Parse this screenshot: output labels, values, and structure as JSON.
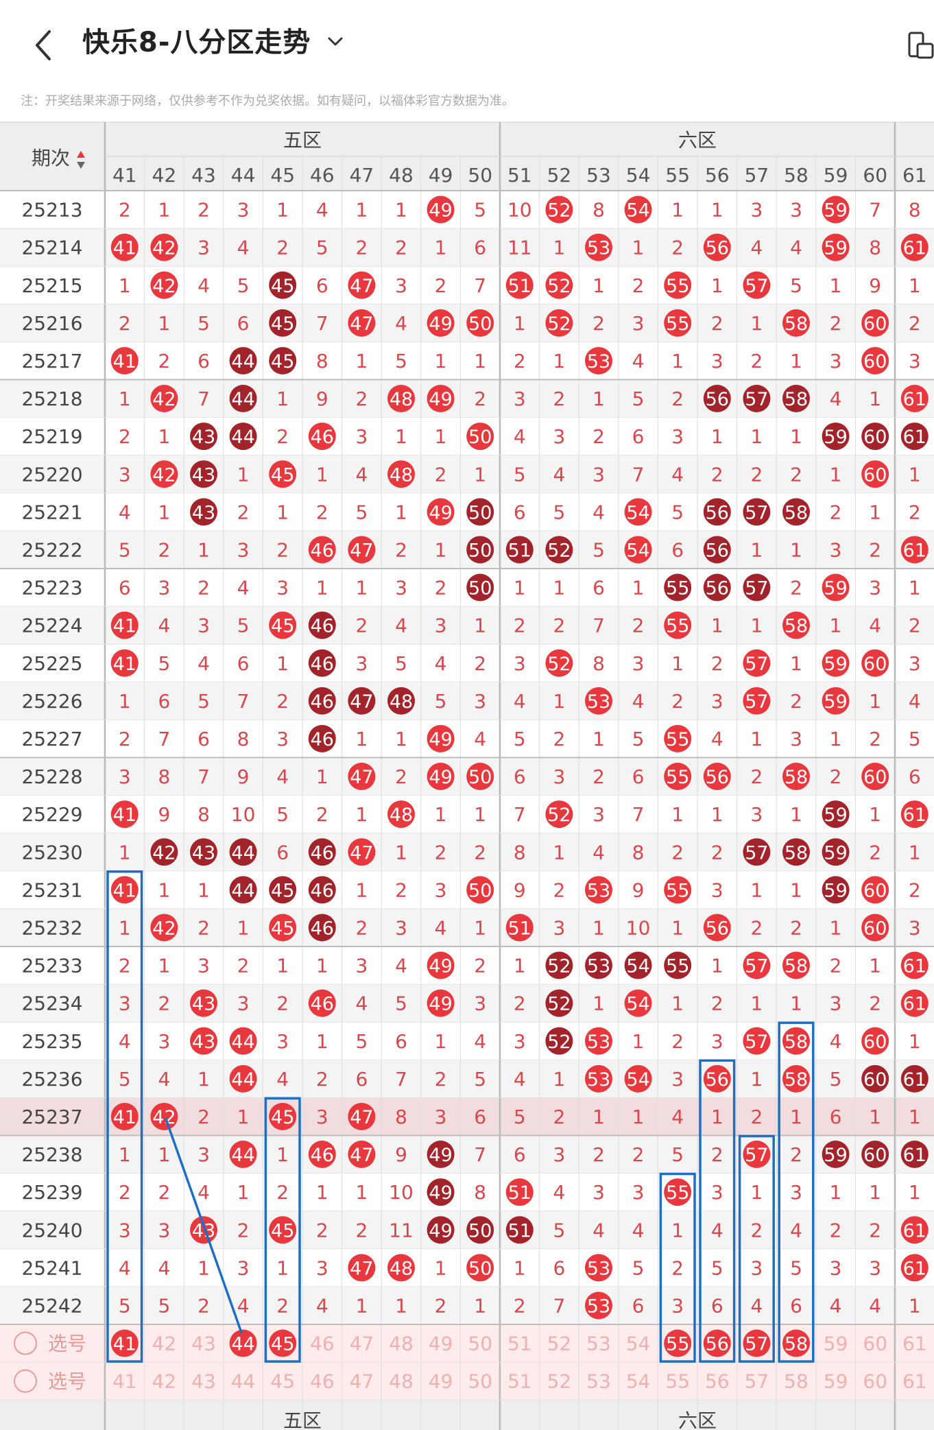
{
  "header": {
    "title": "快乐8-八分区走势",
    "back_icon": "chevron-left-icon",
    "dropdown_icon": "chevron-down-icon",
    "device_icon": "device-switch-icon"
  },
  "notice": "注：开奖结果来源于网络，仅供参考不作为兑奖依据。如有疑问，以福体彩官方数据为准。",
  "table": {
    "period_header": "期次",
    "sort_icon": "sort-updown-icon",
    "zone_labels": [
      "五区",
      "六区"
    ],
    "columns": [
      41,
      42,
      43,
      44,
      45,
      46,
      47,
      48,
      49,
      50,
      51,
      52,
      53,
      54,
      55,
      56,
      57,
      58,
      59,
      60,
      61
    ],
    "rows": [
      {
        "p": "25213",
        "c": [
          2,
          1,
          2,
          3,
          1,
          4,
          1,
          1,
          "H49",
          5,
          10,
          "H52",
          8,
          "H54",
          1,
          1,
          3,
          3,
          "H59",
          7,
          8
        ]
      },
      {
        "p": "25214",
        "c": [
          "H41",
          "H42",
          3,
          4,
          2,
          5,
          2,
          2,
          1,
          6,
          11,
          1,
          "H53",
          1,
          2,
          "H56",
          4,
          4,
          "H59",
          8,
          "H61"
        ]
      },
      {
        "p": "25215",
        "c": [
          1,
          "H42",
          4,
          5,
          "D45",
          6,
          "H47",
          3,
          2,
          7,
          "H51",
          "H52",
          1,
          2,
          "H55",
          1,
          "H57",
          5,
          1,
          9,
          1
        ]
      },
      {
        "p": "25216",
        "c": [
          2,
          1,
          5,
          6,
          "D45",
          7,
          "H47",
          4,
          "H49",
          "H50",
          1,
          "H52",
          2,
          3,
          "H55",
          2,
          1,
          "H58",
          2,
          "H60",
          2
        ]
      },
      {
        "p": "25217",
        "c": [
          "H41",
          2,
          6,
          "D44",
          "D45",
          8,
          1,
          5,
          1,
          1,
          2,
          1,
          "H53",
          4,
          1,
          3,
          2,
          1,
          3,
          "H60",
          3
        ]
      },
      {
        "p": "25218",
        "c": [
          1,
          "H42",
          7,
          "D44",
          1,
          9,
          2,
          "H48",
          "H49",
          2,
          3,
          2,
          1,
          5,
          2,
          "D56",
          "D57",
          "D58",
          4,
          1,
          "H61"
        ]
      },
      {
        "p": "25219",
        "c": [
          2,
          1,
          "D43",
          "D44",
          2,
          "H46",
          3,
          1,
          1,
          "H50",
          4,
          3,
          2,
          6,
          3,
          1,
          1,
          1,
          "D59",
          "D60",
          "D61"
        ]
      },
      {
        "p": "25220",
        "c": [
          3,
          "H42",
          "D43",
          1,
          "H45",
          1,
          4,
          "H48",
          2,
          1,
          5,
          4,
          3,
          7,
          4,
          2,
          2,
          2,
          1,
          "H60",
          1
        ]
      },
      {
        "p": "25221",
        "c": [
          4,
          1,
          "D43",
          2,
          1,
          2,
          5,
          1,
          "H49",
          "D50",
          6,
          5,
          4,
          "H54",
          5,
          "D56",
          "D57",
          "D58",
          2,
          1,
          2
        ]
      },
      {
        "p": "25222",
        "c": [
          5,
          2,
          1,
          3,
          2,
          "H46",
          "H47",
          2,
          1,
          "D50",
          "D51",
          "D52",
          5,
          "H54",
          6,
          "D56",
          1,
          1,
          3,
          2,
          "H61"
        ]
      },
      {
        "p": "25223",
        "c": [
          6,
          3,
          2,
          4,
          3,
          1,
          1,
          3,
          2,
          "D50",
          1,
          1,
          6,
          1,
          "D55",
          "D56",
          "D57",
          2,
          "H59",
          3,
          1
        ]
      },
      {
        "p": "25224",
        "c": [
          "H41",
          4,
          3,
          5,
          "H45",
          "D46",
          2,
          4,
          3,
          1,
          2,
          2,
          7,
          2,
          "H55",
          1,
          1,
          "H58",
          1,
          4,
          2
        ]
      },
      {
        "p": "25225",
        "c": [
          "H41",
          5,
          4,
          6,
          1,
          "D46",
          3,
          5,
          4,
          2,
          3,
          "H52",
          8,
          3,
          1,
          2,
          "H57",
          1,
          "H59",
          "H60",
          3
        ]
      },
      {
        "p": "25226",
        "c": [
          1,
          6,
          5,
          7,
          2,
          "D46",
          "D47",
          "D48",
          5,
          3,
          4,
          1,
          "H53",
          4,
          2,
          3,
          "H57",
          2,
          "H59",
          1,
          4
        ]
      },
      {
        "p": "25227",
        "c": [
          2,
          7,
          6,
          8,
          3,
          "D46",
          1,
          1,
          "H49",
          4,
          5,
          2,
          1,
          5,
          "H55",
          4,
          1,
          3,
          1,
          2,
          5
        ]
      },
      {
        "p": "25228",
        "c": [
          3,
          8,
          7,
          9,
          4,
          1,
          "H47",
          2,
          "H49",
          "H50",
          6,
          3,
          2,
          6,
          "H55",
          "H56",
          2,
          "H58",
          2,
          "H60",
          6
        ]
      },
      {
        "p": "25229",
        "c": [
          "H41",
          9,
          8,
          10,
          5,
          2,
          1,
          "H48",
          1,
          1,
          7,
          "H52",
          3,
          7,
          1,
          1,
          3,
          1,
          "D59",
          1,
          "H61"
        ]
      },
      {
        "p": "25230",
        "c": [
          1,
          "D42",
          "D43",
          "D44",
          6,
          "D46",
          "H47",
          1,
          2,
          2,
          8,
          1,
          4,
          8,
          2,
          2,
          "D57",
          "D58",
          "D59",
          2,
          1
        ]
      },
      {
        "p": "25231",
        "c": [
          "H41",
          1,
          1,
          "D44",
          "D45",
          "D46",
          1,
          2,
          3,
          "H50",
          9,
          2,
          "H53",
          9,
          "H55",
          3,
          1,
          1,
          "D59",
          "H60",
          2
        ]
      },
      {
        "p": "25232",
        "c": [
          1,
          "H42",
          2,
          1,
          "H45",
          "D46",
          2,
          3,
          4,
          1,
          "H51",
          3,
          1,
          10,
          1,
          "H56",
          2,
          2,
          1,
          "H60",
          3
        ]
      },
      {
        "p": "25233",
        "c": [
          2,
          1,
          3,
          2,
          1,
          1,
          3,
          4,
          "H49",
          2,
          1,
          "D52",
          "D53",
          "D54",
          "D55",
          1,
          "H57",
          "H58",
          2,
          1,
          "H61"
        ]
      },
      {
        "p": "25234",
        "c": [
          3,
          2,
          "H43",
          3,
          2,
          "H46",
          4,
          5,
          "H49",
          3,
          2,
          "D52",
          1,
          "H54",
          1,
          2,
          1,
          1,
          3,
          2,
          "H61"
        ]
      },
      {
        "p": "25235",
        "c": [
          4,
          3,
          "H43",
          "H44",
          3,
          1,
          5,
          6,
          1,
          4,
          3,
          "D52",
          "H53",
          1,
          2,
          3,
          "H57",
          "H58",
          4,
          "H60",
          1
        ]
      },
      {
        "p": "25236",
        "c": [
          5,
          4,
          1,
          "H44",
          4,
          2,
          6,
          7,
          2,
          5,
          4,
          1,
          "H53",
          "H54",
          3,
          "H56",
          1,
          "H58",
          5,
          "D60",
          "D61"
        ]
      },
      {
        "p": "25237",
        "c": [
          "H41",
          "H42",
          2,
          1,
          "H45",
          3,
          "H47",
          8,
          3,
          6,
          5,
          2,
          1,
          1,
          4,
          1,
          2,
          1,
          6,
          1,
          1
        ]
      },
      {
        "p": "25238",
        "c": [
          1,
          1,
          3,
          "H44",
          1,
          "H46",
          "H47",
          9,
          "D49",
          7,
          6,
          3,
          2,
          2,
          5,
          2,
          "H57",
          2,
          "D59",
          "D60",
          "D61"
        ]
      },
      {
        "p": "25239",
        "c": [
          2,
          2,
          4,
          1,
          2,
          1,
          1,
          10,
          "D49",
          8,
          "H51",
          4,
          3,
          3,
          "H55",
          3,
          1,
          3,
          1,
          1,
          1
        ]
      },
      {
        "p": "25240",
        "c": [
          3,
          3,
          "H43",
          2,
          "H45",
          2,
          2,
          11,
          "D49",
          "D50",
          "D51",
          5,
          4,
          4,
          1,
          4,
          2,
          4,
          2,
          2,
          "H61"
        ]
      },
      {
        "p": "25241",
        "c": [
          4,
          4,
          1,
          3,
          1,
          3,
          "H47",
          "H48",
          1,
          "H50",
          1,
          6,
          "H53",
          5,
          2,
          5,
          3,
          5,
          3,
          3,
          "H61"
        ]
      },
      {
        "p": "25242",
        "c": [
          5,
          5,
          2,
          4,
          2,
          4,
          1,
          1,
          2,
          1,
          2,
          7,
          "H53",
          6,
          3,
          6,
          4,
          6,
          4,
          4,
          1
        ]
      }
    ],
    "select_rows": [
      {
        "label": "选号",
        "radio_icon": "radio-circle-icon",
        "selected": [
          41,
          44,
          45,
          55,
          56,
          57,
          58
        ]
      },
      {
        "label": "选号",
        "radio_icon": "radio-circle-icon",
        "selected": []
      }
    ],
    "colors": {
      "hit": "#e8383d",
      "dark": "#a3232a",
      "number": "#d9474c",
      "row_alt": "#f4f4f4",
      "header_bg": "#eeeeee",
      "select_bg": "#fdeceb",
      "highlight_row": "#f1dddd",
      "box": "#1e6fc4"
    }
  }
}
